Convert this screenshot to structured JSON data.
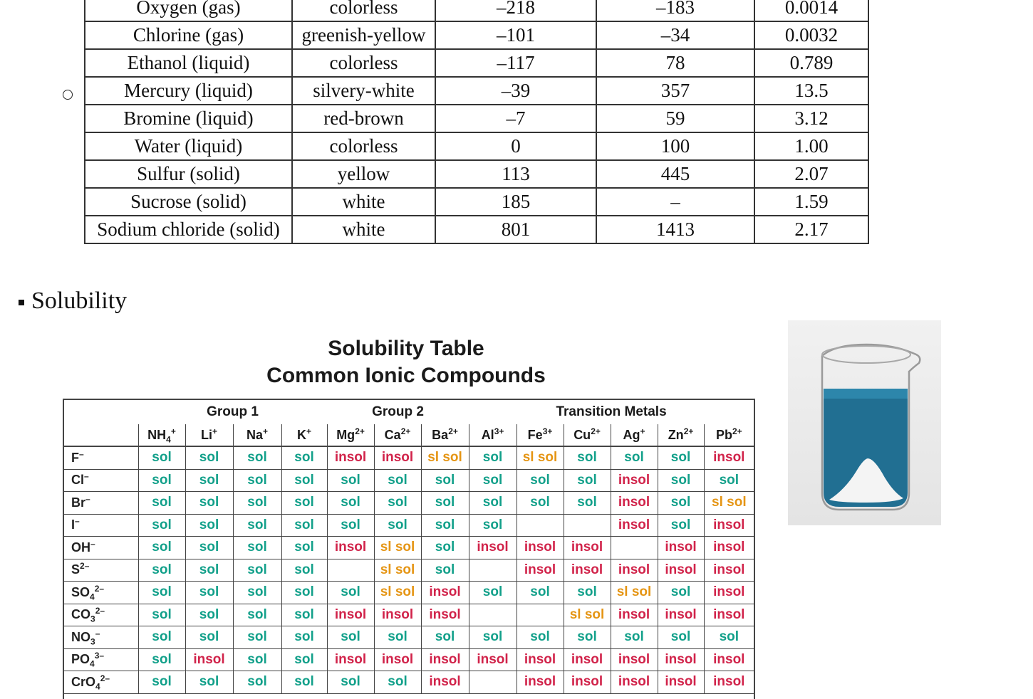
{
  "properties_table": {
    "rows": [
      [
        "Oxygen (gas)",
        "colorless",
        "–218",
        "–183",
        "0.0014"
      ],
      [
        "Chlorine (gas)",
        "greenish-yellow",
        "–101",
        "–34",
        "0.0032"
      ],
      [
        "Ethanol (liquid)",
        "colorless",
        "–117",
        "78",
        "0.789"
      ],
      [
        "Mercury (liquid)",
        "silvery-white",
        "–39",
        "357",
        "13.5"
      ],
      [
        "Bromine (liquid)",
        "red-brown",
        "–7",
        "59",
        "3.12"
      ],
      [
        "Water (liquid)",
        "colorless",
        "0",
        "100",
        "1.00"
      ],
      [
        "Sulfur (solid)",
        "yellow",
        "113",
        "445",
        "2.07"
      ],
      [
        "Sucrose (solid)",
        "white",
        "185",
        "–",
        "1.59"
      ],
      [
        "Sodium chloride (solid)",
        "white",
        "801",
        "1413",
        "2.17"
      ]
    ]
  },
  "section_heading": "Solubility",
  "solubility_chart": {
    "title_line1": "Solubility Table",
    "title_line2": "Common Ionic Compounds",
    "groups": [
      "Group 1",
      "Group 2",
      "Transition Metals"
    ],
    "cations": [
      {
        "base": "NH",
        "sub": "4",
        "sup": "+"
      },
      {
        "base": "Li",
        "sub": "",
        "sup": "+"
      },
      {
        "base": "Na",
        "sub": "",
        "sup": "+"
      },
      {
        "base": "K",
        "sub": "",
        "sup": "+"
      },
      {
        "base": "Mg",
        "sub": "",
        "sup": "2+"
      },
      {
        "base": "Ca",
        "sub": "",
        "sup": "2+"
      },
      {
        "base": "Ba",
        "sub": "",
        "sup": "2+"
      },
      {
        "base": "Al",
        "sub": "",
        "sup": "3+"
      },
      {
        "base": "Fe",
        "sub": "",
        "sup": "3+"
      },
      {
        "base": "Cu",
        "sub": "",
        "sup": "2+"
      },
      {
        "base": "Ag",
        "sub": "",
        "sup": "+"
      },
      {
        "base": "Zn",
        "sub": "",
        "sup": "2+"
      },
      {
        "base": "Pb",
        "sub": "",
        "sup": "2+"
      }
    ],
    "anions": [
      {
        "base": "F",
        "sub": "",
        "sup": "–"
      },
      {
        "base": "Cl",
        "sub": "",
        "sup": "–"
      },
      {
        "base": "Br",
        "sub": "",
        "sup": "–"
      },
      {
        "base": "I",
        "sub": "",
        "sup": "–"
      },
      {
        "base": "OH",
        "sub": "",
        "sup": "–"
      },
      {
        "base": "S",
        "sub": "",
        "sup": "2–"
      },
      {
        "base": "SO",
        "sub": "4",
        "sup": "2–"
      },
      {
        "base": "CO",
        "sub": "3",
        "sup": "2–"
      },
      {
        "base": "NO",
        "sub": "3",
        "sup": "–"
      },
      {
        "base": "PO",
        "sub": "4",
        "sup": "3–"
      },
      {
        "base": "CrO",
        "sub": "4",
        "sup": "2–"
      }
    ],
    "cells": [
      [
        "sol",
        "sol",
        "sol",
        "sol",
        "insol",
        "insol",
        "sl sol",
        "sol",
        "sl sol",
        "sol",
        "sol",
        "sol",
        "insol"
      ],
      [
        "sol",
        "sol",
        "sol",
        "sol",
        "sol",
        "sol",
        "sol",
        "sol",
        "sol",
        "sol",
        "insol",
        "sol",
        "sol"
      ],
      [
        "sol",
        "sol",
        "sol",
        "sol",
        "sol",
        "sol",
        "sol",
        "sol",
        "sol",
        "sol",
        "insol",
        "sol",
        "sl sol"
      ],
      [
        "sol",
        "sol",
        "sol",
        "sol",
        "sol",
        "sol",
        "sol",
        "sol",
        "",
        "",
        "insol",
        "sol",
        "insol"
      ],
      [
        "sol",
        "sol",
        "sol",
        "sol",
        "insol",
        "sl sol",
        "sol",
        "insol",
        "insol",
        "insol",
        "",
        "insol",
        "insol"
      ],
      [
        "sol",
        "sol",
        "sol",
        "sol",
        "",
        "sl sol",
        "sol",
        "",
        "insol",
        "insol",
        "insol",
        "insol",
        "insol"
      ],
      [
        "sol",
        "sol",
        "sol",
        "sol",
        "sol",
        "sl sol",
        "insol",
        "sol",
        "sol",
        "sol",
        "sl sol",
        "sol",
        "insol"
      ],
      [
        "sol",
        "sol",
        "sol",
        "sol",
        "insol",
        "insol",
        "insol",
        "",
        "",
        "sl sol",
        "insol",
        "insol",
        "insol"
      ],
      [
        "sol",
        "sol",
        "sol",
        "sol",
        "sol",
        "sol",
        "sol",
        "sol",
        "sol",
        "sol",
        "sol",
        "sol",
        "sol"
      ],
      [
        "sol",
        "insol",
        "sol",
        "sol",
        "insol",
        "insol",
        "insol",
        "insol",
        "insol",
        "insol",
        "insol",
        "insol",
        "insol"
      ],
      [
        "sol",
        "sol",
        "sol",
        "sol",
        "sol",
        "sol",
        "insol",
        "",
        "insol",
        "insol",
        "insol",
        "insol",
        "insol"
      ]
    ],
    "value_colors": {
      "sol": "#12a08a",
      "insol": "#d1234a",
      "sl sol": "#e59514"
    }
  }
}
